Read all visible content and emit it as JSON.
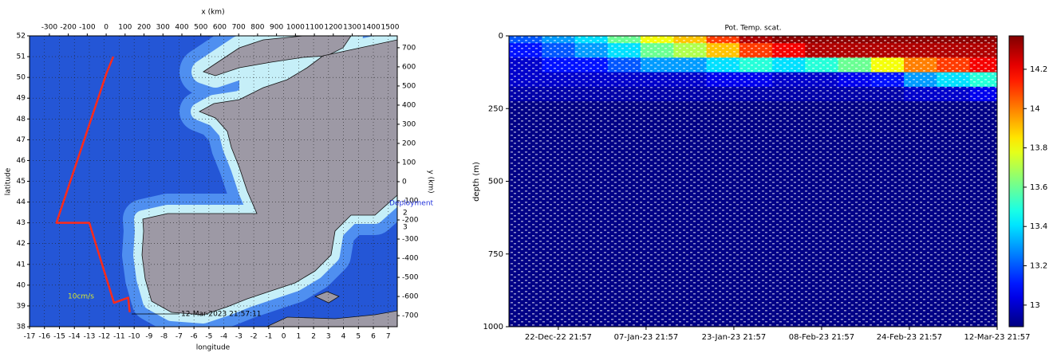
{
  "chart_data": [
    {
      "type": "map",
      "xlabel": "longitude",
      "ylabel": "latitude",
      "x2label": "x (km)",
      "y2label": "y (km)",
      "xlim": [
        -17,
        7.6
      ],
      "ylim": [
        38,
        52
      ],
      "xticks": [
        -17,
        -16,
        -15,
        -14,
        -13,
        -12,
        -11,
        -10,
        -9,
        -8,
        -7,
        -6,
        -5,
        -4,
        -3,
        -2,
        -1,
        0,
        1,
        2,
        3,
        4,
        5,
        6,
        7
      ],
      "yticks": [
        38,
        39,
        40,
        41,
        42,
        43,
        44,
        45,
        46,
        47,
        48,
        49,
        50,
        51,
        52
      ],
      "x2lim": [
        -405,
        1538
      ],
      "x2ticks": [
        -300,
        -200,
        -100,
        0,
        100,
        200,
        300,
        400,
        500,
        600,
        700,
        800,
        900,
        1000,
        1100,
        1200,
        1300,
        1400,
        1500
      ],
      "y2lim": [
        -758,
        762
      ],
      "y2ticks": [
        700,
        600,
        500,
        400,
        300,
        200,
        100,
        0,
        -100,
        -200,
        -300,
        -400,
        -500,
        -600,
        -700
      ],
      "grid": true,
      "series": [
        {
          "color": "#ff2a1a",
          "x": [
            -11.4,
            -11.85,
            -15.2,
            -13.0,
            -11.35,
            -10.4,
            -10.3
          ],
          "y": [
            51.0,
            50.2,
            43.0,
            43.0,
            39.15,
            39.4,
            38.7
          ]
        }
      ],
      "annotations": [
        "12-Mar-2023 21:57:11",
        "Deployment",
        "2",
        "3",
        "10cm/s"
      ]
    },
    {
      "type": "heatmap",
      "title": "Pot. Temp. scat.",
      "ylabel": "depth (m)",
      "x": [
        "2022-12-16T21:57",
        "2022-12-22T21:57",
        "2022-12-28T21:57",
        "2023-01-03T21:57",
        "2023-01-09T21:57",
        "2023-01-15T21:57",
        "2023-01-21T21:57",
        "2023-01-27T21:57",
        "2023-02-02T21:57",
        "2023-02-08T21:57",
        "2023-02-14T21:57",
        "2023-02-20T21:57",
        "2023-02-26T21:57",
        "2023-03-04T21:57",
        "2023-03-10T21:57"
      ],
      "y": [
        0,
        50,
        100,
        150,
        200,
        250,
        300,
        400,
        500,
        600,
        700,
        800,
        900,
        1000
      ],
      "z": [
        [
          13.2,
          13.1,
          13.0,
          13.0,
          12.95,
          12.9,
          12.9,
          12.9,
          12.9,
          12.9,
          12.9,
          12.9,
          12.9,
          12.9
        ],
        [
          13.3,
          13.2,
          13.1,
          13.0,
          12.95,
          12.9,
          12.9,
          12.9,
          12.9,
          12.9,
          12.9,
          12.9,
          12.9,
          12.9
        ],
        [
          13.4,
          13.3,
          13.1,
          13.0,
          12.95,
          12.9,
          12.9,
          12.9,
          12.9,
          12.9,
          12.9,
          12.9,
          12.9,
          12.9
        ],
        [
          13.6,
          13.4,
          13.2,
          13.0,
          12.95,
          12.9,
          12.9,
          12.9,
          12.9,
          12.9,
          12.9,
          12.9,
          12.9,
          12.9
        ],
        [
          13.8,
          13.6,
          13.3,
          13.0,
          12.95,
          12.9,
          12.9,
          12.9,
          12.9,
          12.9,
          12.9,
          12.9,
          12.9,
          12.9
        ],
        [
          13.9,
          13.7,
          13.3,
          13.0,
          12.95,
          12.9,
          12.9,
          12.9,
          12.9,
          12.9,
          12.9,
          12.9,
          12.9,
          12.9
        ],
        [
          14.1,
          13.9,
          13.4,
          13.05,
          12.95,
          12.9,
          12.9,
          12.9,
          12.9,
          12.9,
          12.9,
          12.9,
          12.9,
          12.9
        ],
        [
          14.3,
          14.1,
          13.5,
          13.05,
          12.95,
          12.9,
          12.9,
          12.9,
          12.9,
          12.9,
          12.9,
          12.9,
          12.9,
          12.9
        ],
        [
          14.35,
          14.2,
          13.4,
          13.0,
          12.95,
          12.9,
          12.9,
          12.9,
          12.9,
          12.9,
          12.9,
          12.9,
          12.9,
          12.9
        ],
        [
          14.35,
          14.3,
          13.5,
          13.0,
          12.95,
          12.9,
          12.9,
          12.9,
          12.9,
          12.9,
          12.9,
          12.9,
          12.9,
          12.9
        ],
        [
          14.35,
          14.3,
          13.6,
          13.05,
          12.95,
          12.9,
          12.9,
          12.9,
          12.9,
          12.9,
          12.9,
          12.9,
          12.9,
          12.9
        ],
        [
          14.35,
          14.3,
          13.8,
          13.1,
          12.95,
          12.9,
          12.9,
          12.9,
          12.9,
          12.9,
          12.9,
          12.9,
          12.9,
          12.9
        ],
        [
          14.35,
          14.3,
          14.0,
          13.3,
          13.0,
          12.9,
          12.9,
          12.9,
          12.9,
          12.9,
          12.9,
          12.9,
          12.9,
          12.9
        ],
        [
          14.35,
          14.3,
          14.1,
          13.4,
          13.0,
          12.9,
          12.9,
          12.9,
          12.9,
          12.9,
          12.9,
          12.9,
          12.9,
          12.9
        ],
        [
          14.35,
          14.3,
          14.2,
          13.5,
          13.05,
          12.9,
          12.9,
          12.9,
          12.9,
          12.9,
          12.9,
          12.9,
          12.9,
          12.9
        ]
      ],
      "xlim": [
        "2022-12-13T21:57",
        "2023-03-12T21:57"
      ],
      "xticks": [
        {
          "value": "2022-12-22T21:57",
          "label": "22-Dec-22 21:57"
        },
        {
          "value": "2023-01-07T21:57",
          "label": "07-Jan-23 21:57"
        },
        {
          "value": "2023-01-23T21:57",
          "label": "23-Jan-23 21:57"
        },
        {
          "value": "2023-02-08T21:57",
          "label": "08-Feb-23 21:57"
        },
        {
          "value": "2023-02-24T21:57",
          "label": "24-Feb-23 21:57"
        },
        {
          "value": "2023-03-12T21:57",
          "label": "12-Mar-23 21:57"
        }
      ],
      "ylim": [
        0,
        1000
      ],
      "y_reversed": true,
      "yticks": [
        0,
        250,
        500,
        750,
        1000
      ],
      "colormap": "jet",
      "clim": [
        12.89,
        14.37
      ],
      "cticks": [
        13,
        13.2,
        13.4,
        13.6,
        13.8,
        14,
        14.2
      ]
    }
  ]
}
